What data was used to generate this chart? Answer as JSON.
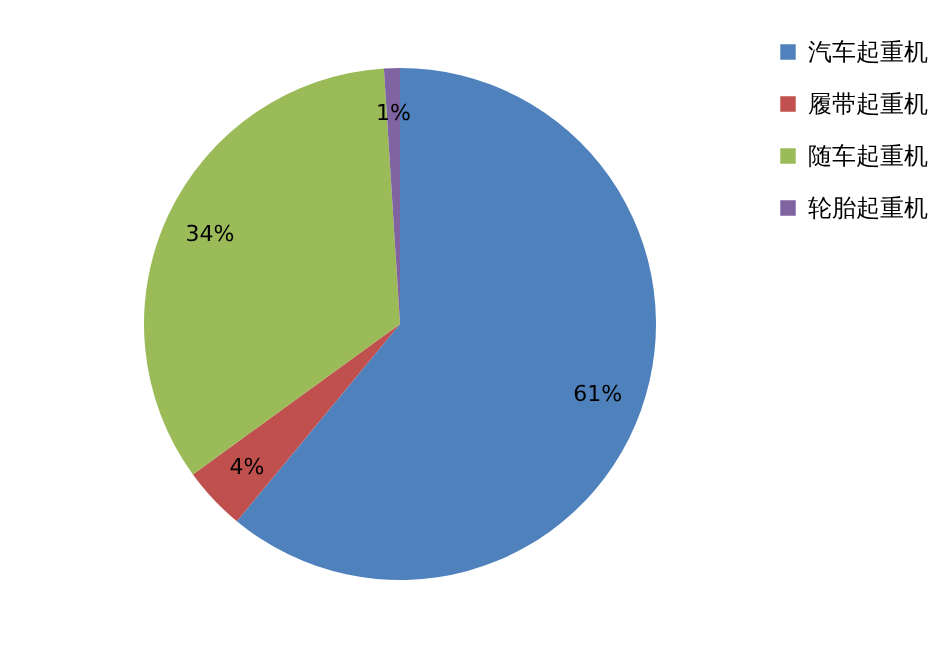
{
  "chart_data": {
    "type": "pie",
    "categories": [
      "汽车起重机",
      "履带起重机",
      "随车起重机",
      "轮胎起重机"
    ],
    "values": [
      61,
      4,
      34,
      1
    ],
    "colors": [
      "#4f81bd",
      "#c0504d",
      "#9bbb59",
      "#8064a2"
    ],
    "value_labels": [
      "61%",
      "4%",
      "34%",
      "1%"
    ],
    "legend": "right"
  }
}
